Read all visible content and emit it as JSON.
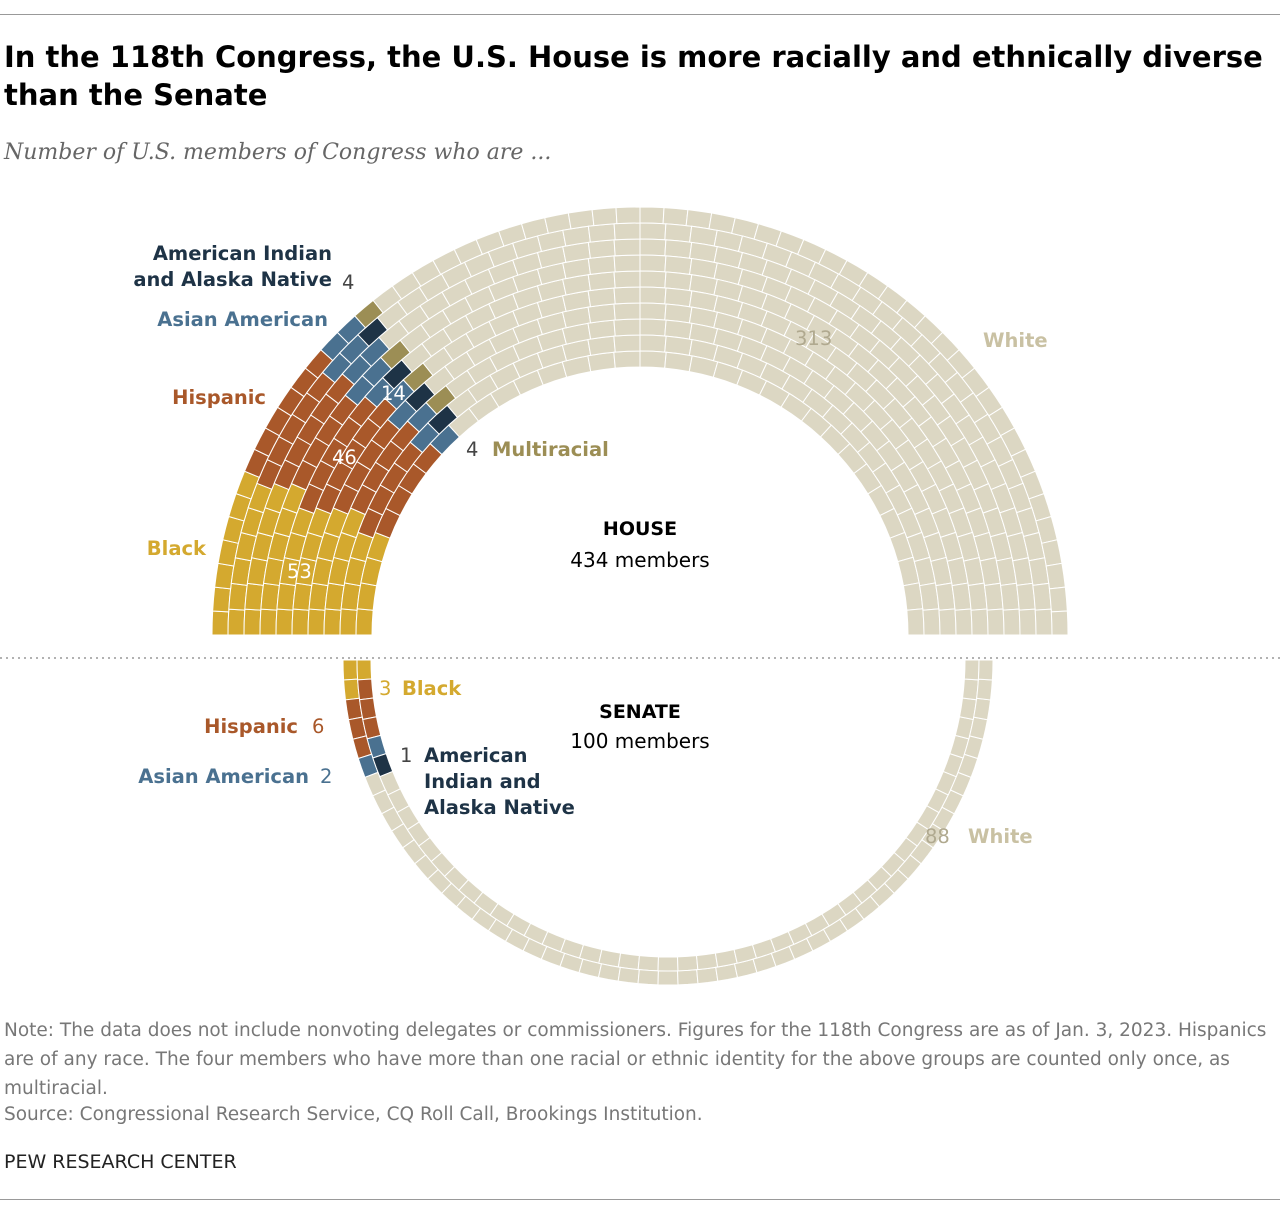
{
  "title": "In the 118th Congress, the U.S. House is more racially and ethnically diverse than the Senate",
  "subtitle": "Number of U.S. members of Congress who are ...",
  "note": "Note: The data does not include nonvoting delegates or commissioners. Figures for the 118th Congress are as of Jan. 3, 2023. Hispanics are of any race. The four members who have more than one racial or ethnic identity for the above groups are counted only once, as multiracial.",
  "source": "Source: Congressional Research Service, CQ Roll Call, Brookings Institution.",
  "footer": "PEW RESEARCH CENTER",
  "chart_data": [
    {
      "type": "parliament",
      "title": "HOUSE",
      "subtitle": "434 members",
      "categories": [
        "Black",
        "Hispanic",
        "Asian American",
        "American Indian and Alaska Native",
        "Multiracial",
        "White"
      ],
      "values": [
        53,
        46,
        14,
        4,
        4,
        313
      ],
      "colors": [
        "#d4a92f",
        "#a9582a",
        "#4a7190",
        "#1e3346",
        "#9c8e55",
        "#dcd7c3"
      ]
    },
    {
      "type": "parliament",
      "title": "SENATE",
      "subtitle": "100 members",
      "categories": [
        "Black",
        "Hispanic",
        "Asian American",
        "American Indian and Alaska Native",
        "White"
      ],
      "values": [
        3,
        6,
        2,
        1,
        88
      ],
      "colors": [
        "#d4a92f",
        "#a9582a",
        "#4a7190",
        "#1e3346",
        "#dcd7c3"
      ]
    }
  ]
}
